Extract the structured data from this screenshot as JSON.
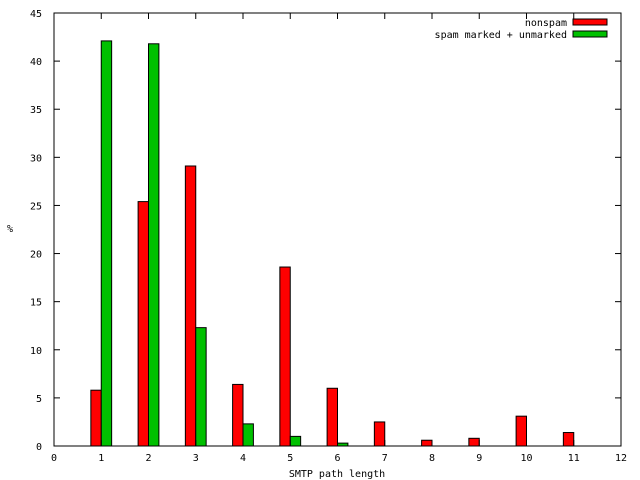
{
  "chart_data": {
    "type": "bar",
    "title": "",
    "xlabel": "SMTP path length",
    "ylabel": "%",
    "xlim": [
      0,
      12
    ],
    "ylim": [
      0,
      45
    ],
    "x_ticks": [
      0,
      1,
      2,
      3,
      4,
      5,
      6,
      7,
      8,
      9,
      10,
      11,
      12
    ],
    "y_ticks": [
      0,
      5,
      10,
      15,
      20,
      25,
      30,
      35,
      40,
      45
    ],
    "grid": false,
    "legend_position": "top-right",
    "series": [
      {
        "name": "nonspam",
        "color": "#ff0000",
        "x": [
          1,
          2,
          3,
          4,
          5,
          6,
          7,
          8,
          9,
          10,
          11
        ],
        "values": [
          5.8,
          25.4,
          29.1,
          6.4,
          18.6,
          6.0,
          2.5,
          0.6,
          0.8,
          3.1,
          1.4
        ]
      },
      {
        "name": "spam marked + unmarked",
        "color": "#00c000",
        "x": [
          1,
          2,
          3,
          4,
          5,
          6,
          7,
          8,
          9,
          10,
          11
        ],
        "values": [
          42.1,
          41.8,
          12.3,
          2.3,
          1.0,
          0.3,
          0,
          0,
          0,
          0,
          0
        ]
      }
    ]
  }
}
